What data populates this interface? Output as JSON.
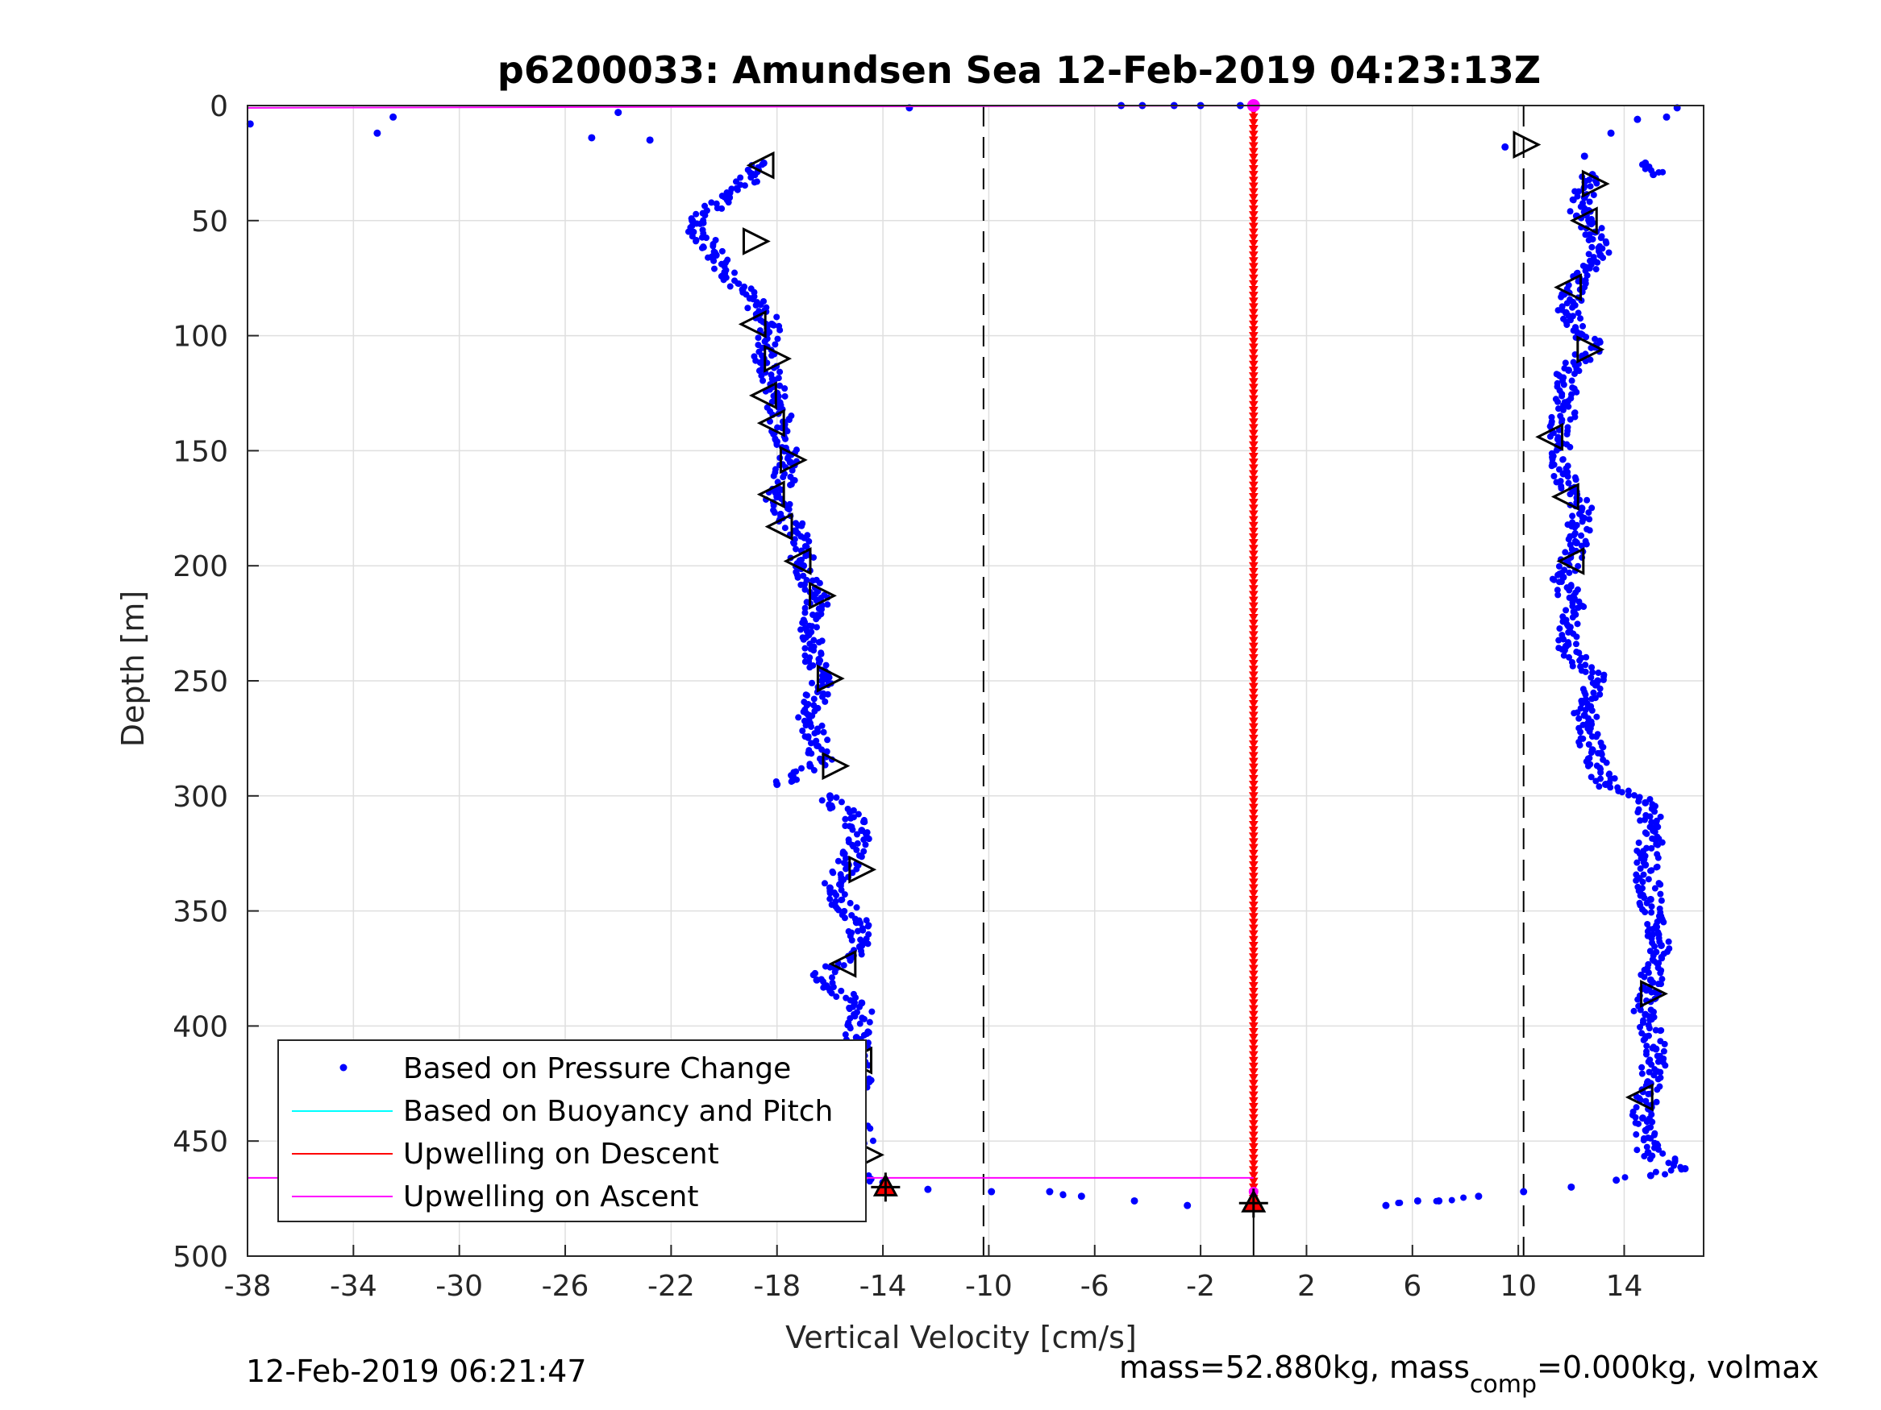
{
  "chart_data": {
    "type": "scatter",
    "title": "p6200033: Amundsen Sea 12-Feb-2019 04:23:13Z",
    "xlabel": "Vertical Velocity [cm/s]",
    "ylabel": "Depth [m]",
    "xlim": [
      -38,
      17
    ],
    "ylim": [
      0,
      500
    ],
    "y_reversed": true,
    "grid": true,
    "xticks": [
      -38,
      -34,
      -30,
      -26,
      -22,
      -18,
      -14,
      -10,
      -6,
      -2,
      2,
      6,
      10,
      14
    ],
    "yticks": [
      0,
      50,
      100,
      150,
      200,
      250,
      300,
      350,
      400,
      450,
      500
    ],
    "dashed_reference_lines_x": [
      -10.2,
      10.2
    ],
    "legend": {
      "location": "bottom-left",
      "entries": [
        {
          "name": "Based on Pressure Change",
          "color": "#0000ff",
          "style": "dot"
        },
        {
          "name": "Based on Buoyancy and Pitch",
          "color": "#00ffff",
          "style": "line"
        },
        {
          "name": "Upwelling on Descent",
          "color": "#ff0000",
          "style": "line"
        },
        {
          "name": "Upwelling on Ascent",
          "color": "#ff00ff",
          "style": "line"
        }
      ]
    },
    "series": [
      {
        "name": "Based on Pressure Change",
        "color": "#0000ff",
        "segments": [
          {
            "part": "descent",
            "points": [
              [
                -37.9,
                8
              ],
              [
                -33.1,
                12
              ],
              [
                -32.5,
                5
              ],
              [
                -25,
                14
              ],
              [
                -24,
                3
              ],
              [
                -22.8,
                15
              ],
              [
                -13,
                1
              ],
              [
                -18.5,
                25
              ],
              [
                -19.8,
                40
              ],
              [
                -21.2,
                50
              ],
              [
                -20.3,
                65
              ],
              [
                -19.3,
                80
              ],
              [
                -18.2,
                95
              ],
              [
                -18.5,
                110
              ],
              [
                -18,
                125
              ],
              [
                -17.8,
                140
              ],
              [
                -17.5,
                155
              ],
              [
                -18,
                170
              ],
              [
                -17.3,
                185
              ],
              [
                -17,
                200
              ],
              [
                -16.5,
                215
              ],
              [
                -16.8,
                230
              ],
              [
                -16.3,
                250
              ],
              [
                -16.8,
                265
              ],
              [
                -16.3,
                285
              ],
              [
                -18,
                295
              ],
              [
                -16,
                300
              ],
              [
                -14.8,
                315
              ],
              [
                -15.3,
                330
              ],
              [
                -16,
                340
              ],
              [
                -15,
                355
              ],
              [
                -14.8,
                365
              ],
              [
                -16.5,
                380
              ],
              [
                -14.8,
                390
              ],
              [
                -15,
                405
              ],
              [
                -14.8,
                420
              ],
              [
                -15.1,
                435
              ],
              [
                -14.8,
                450
              ],
              [
                -16,
                460
              ],
              [
                -14,
                468
              ],
              [
                -12.3,
                471
              ],
              [
                -9.9,
                472
              ],
              [
                -7.7,
                472
              ],
              [
                -6.5,
                474
              ],
              [
                -4.5,
                476
              ],
              [
                -2.5,
                478
              ]
            ]
          },
          {
            "part": "ascent",
            "points": [
              [
                5,
                478
              ],
              [
                6.2,
                476
              ],
              [
                7,
                476
              ],
              [
                8.5,
                474
              ],
              [
                10.2,
                472
              ],
              [
                12,
                470
              ],
              [
                13.7,
                467
              ],
              [
                15,
                465
              ],
              [
                16.3,
                462
              ],
              [
                14.9,
                455
              ],
              [
                14.7,
                440
              ],
              [
                15,
                425
              ],
              [
                15.2,
                410
              ],
              [
                14.8,
                395
              ],
              [
                15,
                380
              ],
              [
                15.4,
                365
              ],
              [
                15,
                345
              ],
              [
                14.8,
                330
              ],
              [
                15.1,
                315
              ],
              [
                14.8,
                303
              ],
              [
                13.3,
                295
              ],
              [
                12.8,
                280
              ],
              [
                12.5,
                265
              ],
              [
                13,
                250
              ],
              [
                11.8,
                235
              ],
              [
                12.1,
                220
              ],
              [
                11.7,
                205
              ],
              [
                12.2,
                190
              ],
              [
                12.4,
                175
              ],
              [
                11.7,
                160
              ],
              [
                11.5,
                145
              ],
              [
                11.8,
                130
              ],
              [
                11.9,
                115
              ],
              [
                12.9,
                105
              ],
              [
                11.8,
                90
              ],
              [
                12.3,
                75
              ],
              [
                13.1,
                65
              ],
              [
                12.9,
                55
              ],
              [
                12.2,
                48
              ],
              [
                12.5,
                40
              ],
              [
                12.8,
                30
              ],
              [
                9.5,
                18
              ],
              [
                12.5,
                22
              ],
              [
                13.5,
                12
              ],
              [
                14.5,
                6
              ],
              [
                16,
                1
              ],
              [
                15.6,
                5
              ],
              [
                14.8,
                25
              ],
              [
                15.1,
                30
              ]
            ]
          },
          {
            "part": "surface",
            "points": [
              [
                -5,
                0
              ],
              [
                -4.2,
                0
              ],
              [
                -3,
                0
              ],
              [
                -2,
                0
              ],
              [
                -0.5,
                0
              ],
              [
                0,
                0
              ]
            ]
          }
        ]
      },
      {
        "name": "Based on Buoyancy and Pitch",
        "color": "#00ffff",
        "points": []
      },
      {
        "name": "Upwelling on Descent",
        "color": "#ff0000",
        "x_constant": 0,
        "depth_range": [
          0,
          478
        ]
      },
      {
        "name": "Upwelling on Ascent",
        "color": "#ff00ff",
        "lines": [
          {
            "x": [
              -38,
              0
            ],
            "y": [
              1,
              0
            ]
          },
          {
            "x": [
              -38,
              0
            ],
            "y": [
              466,
              466
            ]
          }
        ]
      }
    ],
    "pitch_markers": {
      "style": "open-triangle",
      "descent": [
        [
          -18.6,
          26,
          "left"
        ],
        [
          -18.8,
          59,
          "right"
        ],
        [
          -18.9,
          95,
          "left"
        ],
        [
          -18,
          110,
          "right"
        ],
        [
          -18.5,
          126,
          "left"
        ],
        [
          -18.2,
          138,
          "left"
        ],
        [
          -17.4,
          154,
          "right"
        ],
        [
          -18.2,
          169,
          "left"
        ],
        [
          -17.9,
          183,
          "left"
        ],
        [
          -17.2,
          198,
          "left"
        ],
        [
          -16.3,
          213,
          "right"
        ],
        [
          -16,
          249,
          "right"
        ],
        [
          -15.8,
          287,
          "right"
        ],
        [
          -14.8,
          332,
          "right"
        ],
        [
          -15.5,
          373,
          "left"
        ],
        [
          -14.9,
          415,
          "left"
        ],
        [
          -14.5,
          456,
          "right"
        ]
      ],
      "ascent": [
        [
          10.3,
          17,
          "right"
        ],
        [
          12.9,
          34,
          "right"
        ],
        [
          12.5,
          50,
          "left"
        ],
        [
          11.9,
          79,
          "left"
        ],
        [
          12.7,
          106,
          "right"
        ],
        [
          11.2,
          144,
          "left"
        ],
        [
          11.8,
          170,
          "left"
        ],
        [
          12,
          198,
          "left"
        ],
        [
          15.1,
          386,
          "right"
        ],
        [
          14.6,
          431,
          "left"
        ]
      ]
    },
    "end_markers": [
      [
        -13.9,
        470
      ],
      [
        0,
        477
      ]
    ]
  },
  "footer": {
    "timestamp": "12-Feb-2019 06:21:47",
    "mass_text_a": "mass=52.880kg, mass",
    "mass_sub": "comp",
    "mass_text_b": "=0.000kg, volmax"
  }
}
